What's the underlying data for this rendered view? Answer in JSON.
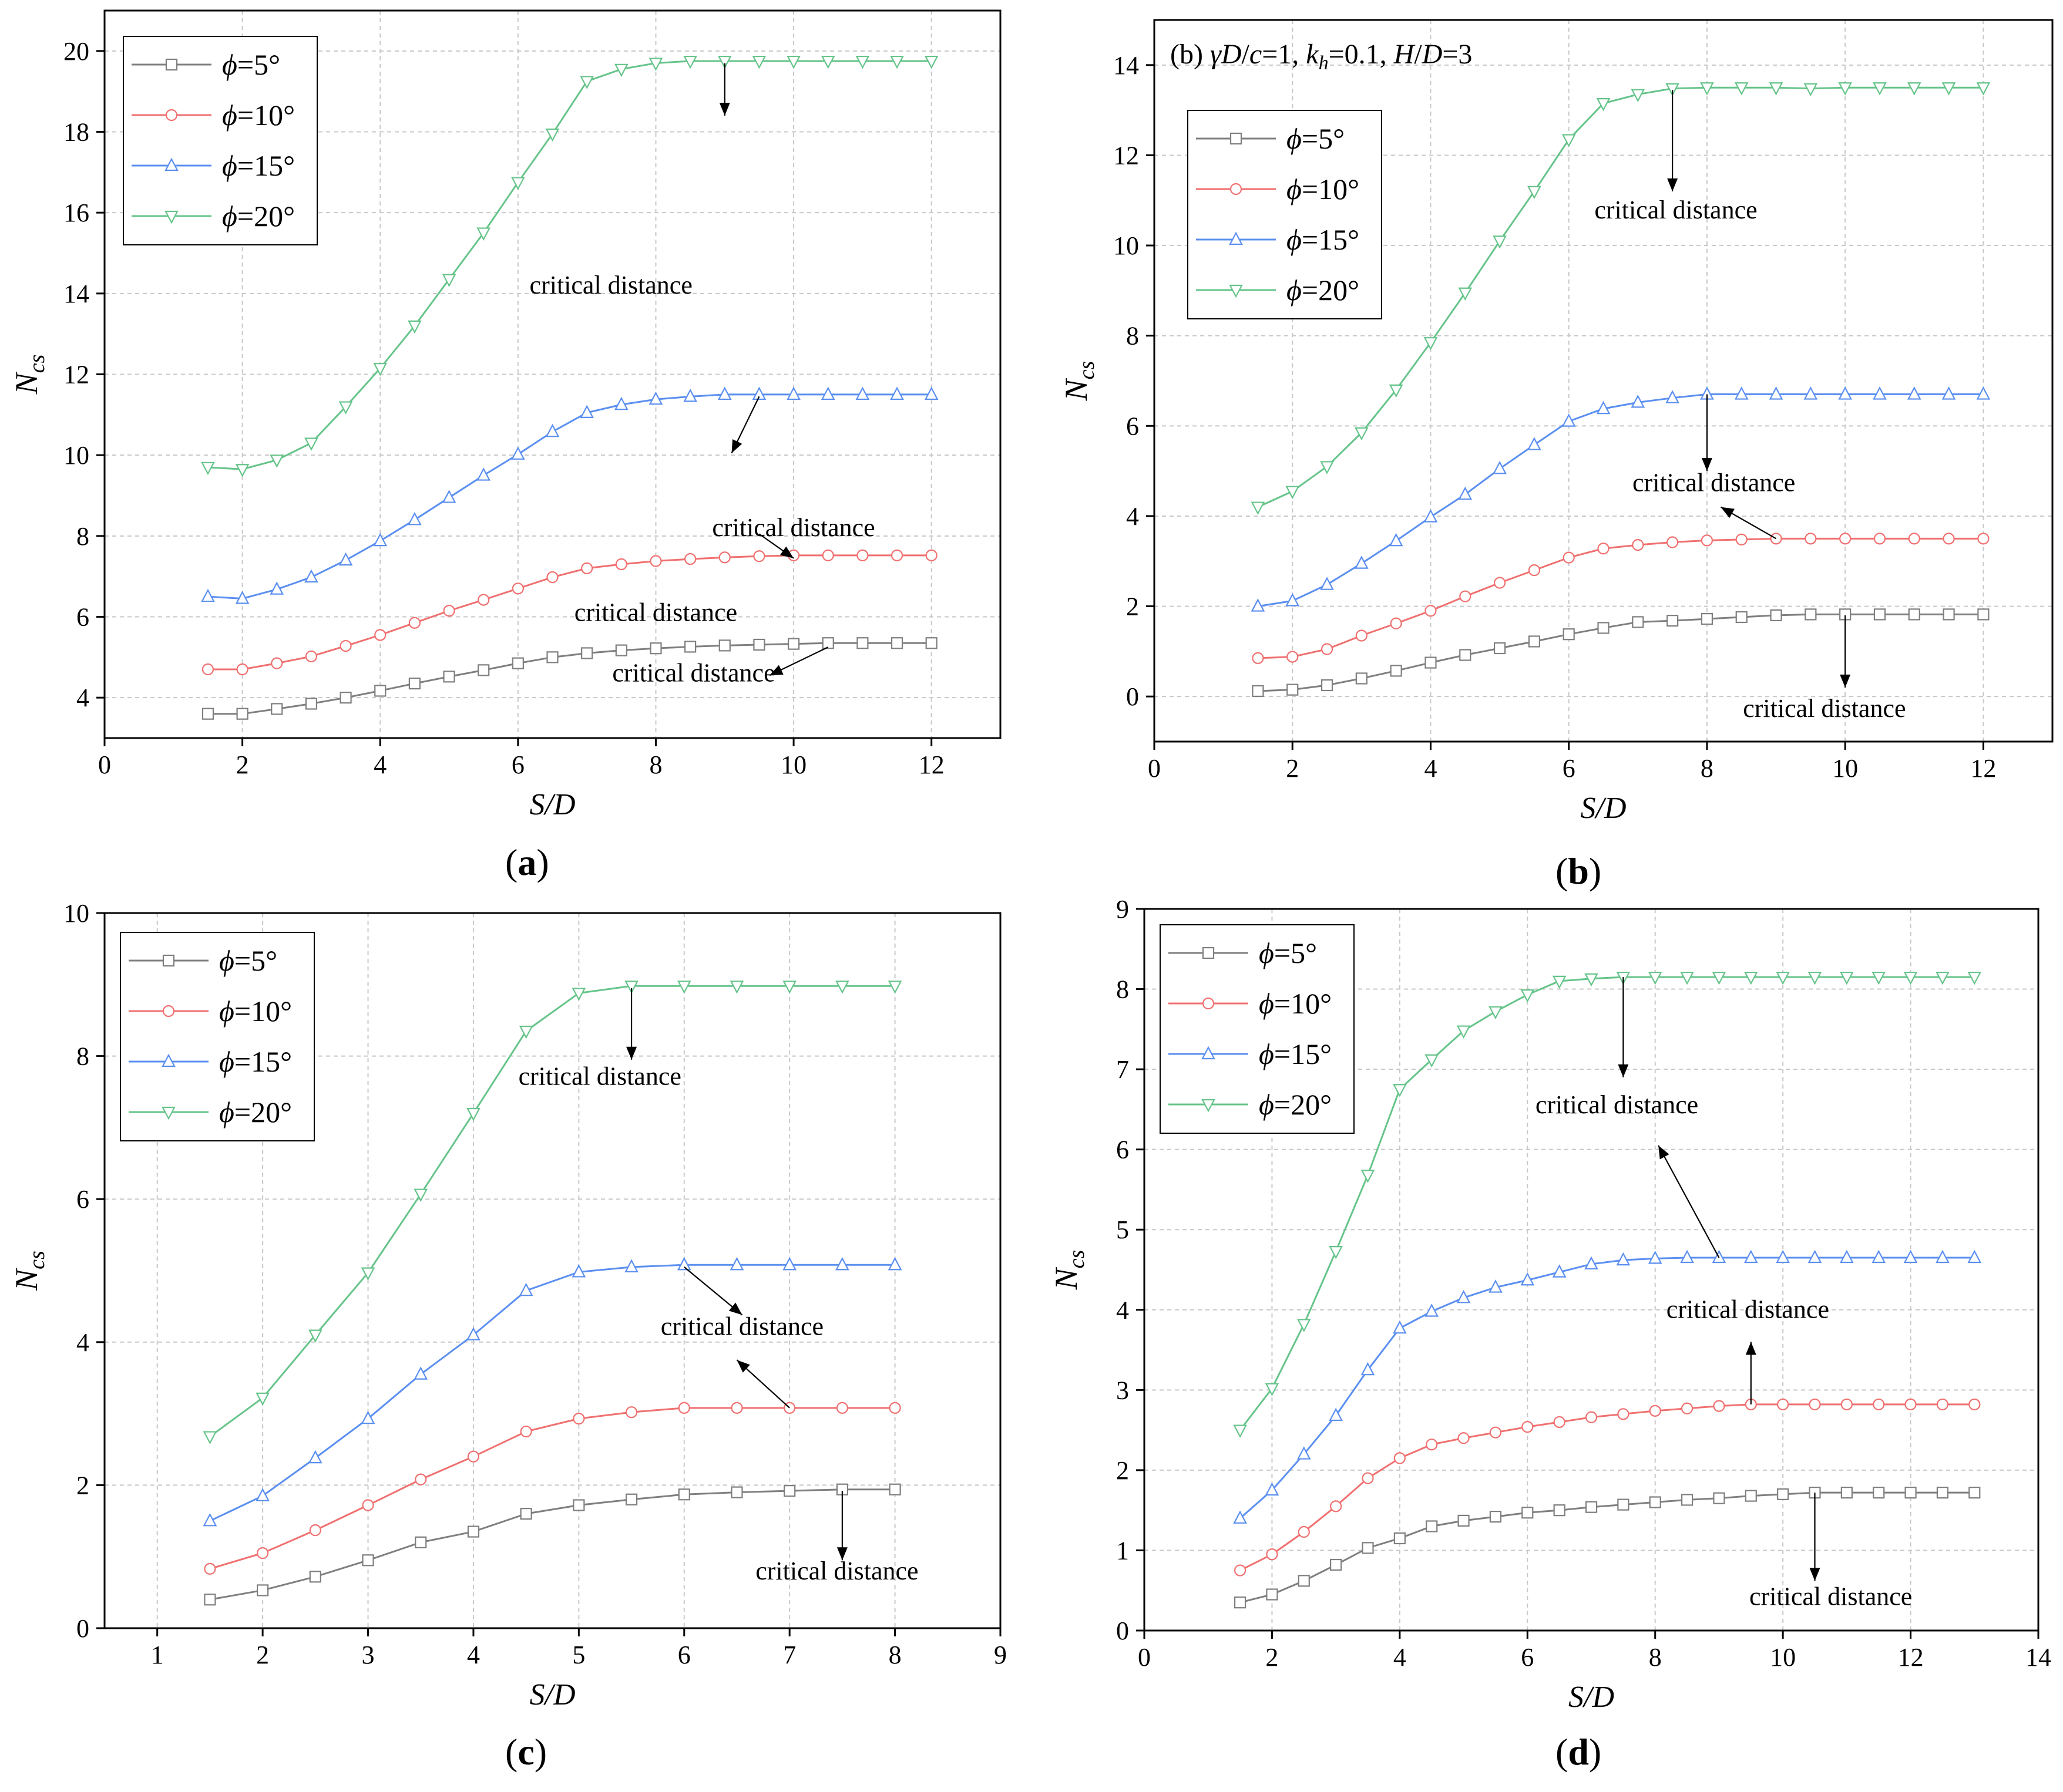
{
  "figure": {
    "colors": {
      "s5": "#7f7f7f",
      "s10": "#f07070",
      "s15": "#5b8ff0",
      "s20": "#66c48a",
      "axis": "#000000",
      "grid": "#c8c8c8"
    },
    "markers": {
      "s5": "square",
      "s10": "circle",
      "s15": "triangle-up",
      "s20": "triangle-down"
    }
  },
  "chart_data": [
    {
      "type": "line",
      "panel_label": "(a)",
      "annotation_title": "",
      "xlabel": "S/D",
      "ylabel": "Ncs",
      "xlim": [
        0,
        13
      ],
      "ylim": [
        3,
        21
      ],
      "xticks": [
        0,
        2,
        4,
        6,
        8,
        10,
        12
      ],
      "yticks": [
        4,
        6,
        8,
        10,
        12,
        14,
        16,
        18,
        20
      ],
      "grid": true,
      "legend_position": "top-left",
      "series": [
        {
          "name": "ϕ=5°",
          "x": [
            1.5,
            2,
            2.5,
            3,
            3.5,
            4,
            4.5,
            5,
            5.5,
            6,
            6.5,
            7,
            7.5,
            8,
            8.5,
            9,
            9.5,
            10,
            10.5,
            11,
            11.5,
            12
          ],
          "y": [
            3.6,
            3.6,
            3.72,
            3.85,
            4.0,
            4.17,
            4.35,
            4.52,
            4.68,
            4.85,
            5.0,
            5.1,
            5.17,
            5.22,
            5.26,
            5.29,
            5.31,
            5.33,
            5.35,
            5.35,
            5.35,
            5.35
          ]
        },
        {
          "name": "ϕ=10°",
          "x": [
            1.5,
            2,
            2.5,
            3,
            3.5,
            4,
            4.5,
            5,
            5.5,
            6,
            6.5,
            7,
            7.5,
            8,
            8.5,
            9,
            9.5,
            10,
            10.5,
            11,
            11.5,
            12
          ],
          "y": [
            4.7,
            4.7,
            4.85,
            5.02,
            5.28,
            5.55,
            5.85,
            6.15,
            6.42,
            6.7,
            6.98,
            7.2,
            7.3,
            7.38,
            7.43,
            7.47,
            7.5,
            7.52,
            7.52,
            7.52,
            7.52,
            7.52
          ]
        },
        {
          "name": "ϕ=15°",
          "x": [
            1.5,
            2,
            2.5,
            3,
            3.5,
            4,
            4.5,
            5,
            5.5,
            6,
            6.5,
            7,
            7.5,
            8,
            8.5,
            9,
            9.5,
            10,
            10.5,
            11,
            11.5,
            12
          ],
          "y": [
            6.5,
            6.45,
            6.68,
            6.98,
            7.4,
            7.88,
            8.4,
            8.95,
            9.5,
            10.02,
            10.58,
            11.05,
            11.25,
            11.38,
            11.45,
            11.5,
            11.5,
            11.5,
            11.5,
            11.5,
            11.5,
            11.5
          ]
        },
        {
          "name": "ϕ=20°",
          "x": [
            1.5,
            2,
            2.5,
            3,
            3.5,
            4,
            4.5,
            5,
            5.5,
            6,
            6.5,
            7,
            7.5,
            8,
            8.5,
            9,
            9.5,
            10,
            10.5,
            11,
            11.5,
            12
          ],
          "y": [
            9.7,
            9.65,
            9.88,
            10.3,
            11.2,
            12.15,
            13.2,
            14.35,
            15.5,
            16.75,
            17.95,
            19.25,
            19.55,
            19.7,
            19.75,
            19.75,
            19.75,
            19.75,
            19.75,
            19.75,
            19.75,
            19.75
          ]
        }
      ],
      "annotations": [
        {
          "text": "critical distance",
          "x": 7.35,
          "y": 14.0,
          "arrow_from": [
            9.0,
            19.7
          ],
          "arrow_to": [
            9.0,
            18.4
          ]
        },
        {
          "text": "critical distance",
          "x": 8.0,
          "y": 5.9,
          "arrow_from": [
            9.5,
            11.45
          ],
          "arrow_to": [
            9.1,
            10.05
          ]
        },
        {
          "text": "critical distance",
          "x": 10.0,
          "y": 8.0,
          "arrow_from": [
            9.5,
            8.05
          ],
          "arrow_to": [
            10.0,
            7.45
          ]
        },
        {
          "text": "critical distance",
          "x": 8.55,
          "y": 4.4,
          "arrow_from": [
            10.5,
            5.25
          ],
          "arrow_to": [
            9.65,
            4.55
          ]
        }
      ]
    },
    {
      "type": "line",
      "panel_label": "(b)",
      "annotation_title": "(b) γD/c=1, kh=0.1, H/D=3",
      "xlabel": "S/D",
      "ylabel": "Ncs",
      "xlim": [
        0,
        13
      ],
      "ylim": [
        -1,
        15
      ],
      "xticks": [
        0,
        2,
        4,
        6,
        8,
        10,
        12
      ],
      "yticks": [
        0,
        2,
        4,
        6,
        8,
        10,
        12,
        14
      ],
      "grid": true,
      "legend_position": "top-left",
      "series": [
        {
          "name": "ϕ=5°",
          "x": [
            1.5,
            2,
            2.5,
            3,
            3.5,
            4,
            4.5,
            5,
            5.5,
            6,
            6.5,
            7,
            7.5,
            8,
            8.5,
            9,
            9.5,
            10,
            10.5,
            11,
            11.5,
            12
          ],
          "y": [
            0.12,
            0.15,
            0.25,
            0.4,
            0.57,
            0.75,
            0.92,
            1.07,
            1.22,
            1.38,
            1.52,
            1.65,
            1.68,
            1.72,
            1.76,
            1.8,
            1.82,
            1.82,
            1.82,
            1.82,
            1.82,
            1.82
          ]
        },
        {
          "name": "ϕ=10°",
          "x": [
            1.5,
            2,
            2.5,
            3,
            3.5,
            4,
            4.5,
            5,
            5.5,
            6,
            6.5,
            7,
            7.5,
            8,
            8.5,
            9,
            9.5,
            10,
            10.5,
            11,
            11.5,
            12
          ],
          "y": [
            0.85,
            0.88,
            1.05,
            1.35,
            1.62,
            1.9,
            2.22,
            2.52,
            2.8,
            3.08,
            3.28,
            3.36,
            3.42,
            3.46,
            3.48,
            3.5,
            3.5,
            3.5,
            3.5,
            3.5,
            3.5,
            3.5
          ]
        },
        {
          "name": "ϕ=15°",
          "x": [
            1.5,
            2,
            2.5,
            3,
            3.5,
            4,
            4.5,
            5,
            5.5,
            6,
            6.5,
            7,
            7.5,
            8,
            8.5,
            9,
            9.5,
            10,
            10.5,
            11,
            11.5,
            12
          ],
          "y": [
            2.0,
            2.12,
            2.48,
            2.95,
            3.45,
            3.98,
            4.48,
            5.05,
            5.58,
            6.1,
            6.38,
            6.52,
            6.62,
            6.7,
            6.7,
            6.7,
            6.7,
            6.7,
            6.7,
            6.7,
            6.7,
            6.7
          ]
        },
        {
          "name": "ϕ=20°",
          "x": [
            1.5,
            2,
            2.5,
            3,
            3.5,
            4,
            4.5,
            5,
            5.5,
            6,
            6.5,
            7,
            7.5,
            8,
            8.5,
            9,
            9.5,
            10,
            10.5,
            11,
            11.5,
            12
          ],
          "y": [
            4.2,
            4.55,
            5.1,
            5.85,
            6.8,
            7.85,
            8.95,
            10.1,
            11.2,
            12.35,
            13.15,
            13.35,
            13.48,
            13.5,
            13.5,
            13.5,
            13.48,
            13.5,
            13.5,
            13.5,
            13.5,
            13.5
          ]
        }
      ],
      "annotations": [
        {
          "text": "critical distance",
          "x": 7.55,
          "y": 10.6,
          "arrow_from": [
            7.5,
            13.45
          ],
          "arrow_to": [
            7.5,
            11.2
          ]
        },
        {
          "text": "critical distance",
          "x": 8.1,
          "y": 4.55,
          "arrow_from": [
            8.0,
            6.7
          ],
          "arrow_to": [
            8.0,
            5.0
          ]
        },
        {
          "text": "critical distance",
          "x": 8.1,
          "y": 4.55,
          "arrow_from": [
            9.0,
            3.5
          ],
          "arrow_to": [
            8.2,
            4.2
          ]
        },
        {
          "text": "critical distance",
          "x": 9.7,
          "y": -0.45,
          "arrow_from": [
            10.0,
            1.8
          ],
          "arrow_to": [
            10.0,
            0.2
          ]
        }
      ]
    },
    {
      "type": "line",
      "panel_label": "(c)",
      "annotation_title": "",
      "xlabel": "S/D",
      "ylabel": "Ncs",
      "xlim": [
        0.5,
        9
      ],
      "ylim": [
        0,
        10
      ],
      "xticks": [
        1,
        2,
        3,
        4,
        5,
        6,
        7,
        8,
        9
      ],
      "yticks": [
        0,
        2,
        4,
        6,
        8,
        10
      ],
      "grid": true,
      "legend_position": "top-left",
      "series": [
        {
          "name": "ϕ=5°",
          "x": [
            1.5,
            2,
            2.5,
            3,
            3.5,
            4,
            4.5,
            5,
            5.5,
            6,
            6.5,
            7,
            7.5,
            8
          ],
          "y": [
            0.4,
            0.53,
            0.72,
            0.95,
            1.2,
            1.35,
            1.6,
            1.72,
            1.8,
            1.87,
            1.9,
            1.92,
            1.94,
            1.94
          ]
        },
        {
          "name": "ϕ=10°",
          "x": [
            1.5,
            2,
            2.5,
            3,
            3.5,
            4,
            4.5,
            5,
            5.5,
            6,
            6.5,
            7,
            7.5,
            8
          ],
          "y": [
            0.83,
            1.05,
            1.37,
            1.72,
            2.08,
            2.4,
            2.75,
            2.93,
            3.02,
            3.08,
            3.08,
            3.08,
            3.08,
            3.08
          ]
        },
        {
          "name": "ϕ=15°",
          "x": [
            1.5,
            2,
            2.5,
            3,
            3.5,
            4,
            4.5,
            5,
            5.5,
            6,
            6.5,
            7,
            7.5,
            8
          ],
          "y": [
            1.5,
            1.85,
            2.38,
            2.93,
            3.55,
            4.1,
            4.72,
            4.98,
            5.05,
            5.08,
            5.08,
            5.08,
            5.08,
            5.08
          ]
        },
        {
          "name": "ϕ=20°",
          "x": [
            1.5,
            2,
            2.5,
            3,
            3.5,
            4,
            4.5,
            5,
            5.5,
            6,
            6.5,
            7,
            7.5,
            8
          ],
          "y": [
            2.68,
            3.22,
            4.1,
            4.97,
            6.07,
            7.2,
            8.35,
            8.88,
            8.98,
            8.98,
            8.98,
            8.98,
            8.98,
            8.98
          ]
        }
      ],
      "annotations": [
        {
          "text": "critical distance",
          "x": 5.2,
          "y": 7.6,
          "arrow_from": [
            5.5,
            8.95
          ],
          "arrow_to": [
            5.5,
            7.95
          ]
        },
        {
          "text": "critical distance",
          "x": 6.55,
          "y": 4.1,
          "arrow_from": [
            6.0,
            5.05
          ],
          "arrow_to": [
            6.55,
            4.38
          ]
        },
        {
          "text": "critical distance",
          "x": 6.55,
          "y": 4.1,
          "arrow_from": [
            7.0,
            3.08
          ],
          "arrow_to": [
            6.5,
            3.75
          ]
        },
        {
          "text": "critical distance",
          "x": 7.45,
          "y": 0.68,
          "arrow_from": [
            7.5,
            1.92
          ],
          "arrow_to": [
            7.5,
            0.95
          ]
        }
      ]
    },
    {
      "type": "line",
      "panel_label": "(d)",
      "annotation_title": "",
      "xlabel": "S/D",
      "ylabel": "Ncs",
      "xlim": [
        0,
        14
      ],
      "ylim": [
        0,
        9
      ],
      "xticks": [
        0,
        2,
        4,
        6,
        8,
        10,
        12,
        14
      ],
      "yticks": [
        0,
        1,
        2,
        3,
        4,
        5,
        6,
        7,
        8,
        9
      ],
      "grid": true,
      "legend_position": "top-left",
      "series": [
        {
          "name": "ϕ=5°",
          "x": [
            1.5,
            2,
            2.5,
            3,
            3.5,
            4,
            4.5,
            5,
            5.5,
            6,
            6.5,
            7,
            7.5,
            8,
            8.5,
            9,
            9.5,
            10,
            10.5,
            11,
            11.5,
            12,
            12.5,
            13
          ],
          "y": [
            0.35,
            0.45,
            0.62,
            0.82,
            1.03,
            1.15,
            1.3,
            1.37,
            1.42,
            1.47,
            1.5,
            1.54,
            1.57,
            1.6,
            1.63,
            1.65,
            1.68,
            1.7,
            1.72,
            1.72,
            1.72,
            1.72,
            1.72,
            1.72
          ]
        },
        {
          "name": "ϕ=10°",
          "x": [
            1.5,
            2,
            2.5,
            3,
            3.5,
            4,
            4.5,
            5,
            5.5,
            6,
            6.5,
            7,
            7.5,
            8,
            8.5,
            9,
            9.5,
            10,
            10.5,
            11,
            11.5,
            12,
            12.5,
            13
          ],
          "y": [
            0.75,
            0.95,
            1.23,
            1.55,
            1.9,
            2.15,
            2.32,
            2.4,
            2.47,
            2.54,
            2.6,
            2.66,
            2.7,
            2.74,
            2.77,
            2.8,
            2.82,
            2.82,
            2.82,
            2.82,
            2.82,
            2.82,
            2.82,
            2.82
          ]
        },
        {
          "name": "ϕ=15°",
          "x": [
            1.5,
            2,
            2.5,
            3,
            3.5,
            4,
            4.5,
            5,
            5.5,
            6,
            6.5,
            7,
            7.5,
            8,
            8.5,
            9,
            9.5,
            10,
            10.5,
            11,
            11.5,
            12,
            12.5,
            13
          ],
          "y": [
            1.4,
            1.75,
            2.2,
            2.68,
            3.25,
            3.77,
            3.98,
            4.15,
            4.28,
            4.37,
            4.47,
            4.57,
            4.62,
            4.64,
            4.65,
            4.65,
            4.65,
            4.65,
            4.65,
            4.65,
            4.65,
            4.65,
            4.65,
            4.65
          ]
        },
        {
          "name": "ϕ=20°",
          "x": [
            1.5,
            2,
            2.5,
            3,
            3.5,
            4,
            4.5,
            5,
            5.5,
            6,
            6.5,
            7,
            7.5,
            8,
            8.5,
            9,
            9.5,
            10,
            10.5,
            11,
            11.5,
            12,
            12.5,
            13
          ],
          "y": [
            2.5,
            3.02,
            3.82,
            4.73,
            5.68,
            6.75,
            7.12,
            7.48,
            7.72,
            7.93,
            8.1,
            8.13,
            8.15,
            8.15,
            8.15,
            8.15,
            8.15,
            8.15,
            8.15,
            8.15,
            8.15,
            8.15,
            8.15,
            8.15
          ]
        }
      ],
      "annotations": [
        {
          "text": "critical distance",
          "x": 7.4,
          "y": 6.45,
          "arrow_from": [
            7.5,
            8.15
          ],
          "arrow_to": [
            7.5,
            6.9
          ]
        },
        {
          "text": "critical distance",
          "x": 9.45,
          "y": 3.9,
          "arrow_from": [
            9.0,
            4.65
          ],
          "arrow_to": [
            8.05,
            6.05
          ]
        },
        {
          "text": "critical distance",
          "x": 9.45,
          "y": 3.9,
          "arrow_from": [
            9.5,
            2.82
          ],
          "arrow_to": [
            9.5,
            3.6
          ]
        },
        {
          "text": "critical distance",
          "x": 10.75,
          "y": 0.32,
          "arrow_from": [
            10.5,
            1.72
          ],
          "arrow_to": [
            10.5,
            0.62
          ]
        }
      ]
    }
  ]
}
